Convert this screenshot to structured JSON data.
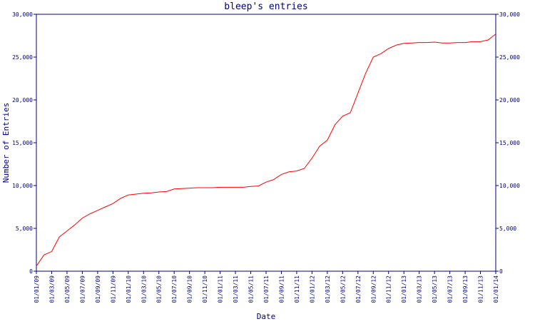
{
  "chart_data": {
    "type": "line",
    "title": "bleep's entries",
    "xlabel": "Date",
    "ylabel": "Number of Entries",
    "x": [
      "01/01/09",
      "01/02/09",
      "01/03/09",
      "01/04/09",
      "01/05/09",
      "01/06/09",
      "01/07/09",
      "01/08/09",
      "01/09/09",
      "01/10/09",
      "01/11/09",
      "01/12/09",
      "01/01/10",
      "01/02/10",
      "01/03/10",
      "01/04/10",
      "01/05/10",
      "01/06/10",
      "01/07/10",
      "01/08/10",
      "01/09/10",
      "01/10/10",
      "01/11/10",
      "01/12/10",
      "01/01/11",
      "01/02/11",
      "01/03/11",
      "01/04/11",
      "01/05/11",
      "01/06/11",
      "01/07/11",
      "01/08/11",
      "01/09/11",
      "01/10/11",
      "01/11/11",
      "01/12/11",
      "01/01/12",
      "01/02/12",
      "01/03/12",
      "01/04/12",
      "01/05/12",
      "01/06/12",
      "01/07/12",
      "01/08/12",
      "01/09/12",
      "01/10/12",
      "01/11/12",
      "01/12/12",
      "01/01/13",
      "01/02/13",
      "01/03/13",
      "01/04/13",
      "01/05/13",
      "01/06/13",
      "01/07/13",
      "01/08/13",
      "01/09/13",
      "01/10/13",
      "01/11/13",
      "01/12/13",
      "01/01/14"
    ],
    "series": [
      {
        "name": "entries",
        "color": "#ff0000",
        "values": [
          600,
          1900,
          2300,
          4000,
          4700,
          5400,
          6200,
          6700,
          7100,
          7500,
          7900,
          8500,
          8900,
          9000,
          9100,
          9150,
          9250,
          9300,
          9600,
          9650,
          9700,
          9750,
          9750,
          9750,
          9800,
          9800,
          9800,
          9800,
          9900,
          9950,
          10400,
          10700,
          11300,
          11600,
          11700,
          12000,
          13200,
          14600,
          15300,
          17100,
          18100,
          18500,
          20800,
          23100,
          25000,
          25400,
          26000,
          26400,
          26600,
          26650,
          26700,
          26700,
          26750,
          26650,
          26650,
          26700,
          26700,
          26800,
          26800,
          27000,
          27700
        ]
      }
    ],
    "xticks": [
      "01/01/09",
      "01/03/09",
      "01/05/09",
      "01/07/09",
      "01/09/09",
      "01/11/09",
      "01/01/10",
      "01/03/10",
      "01/05/10",
      "01/07/10",
      "01/09/10",
      "01/11/10",
      "01/01/11",
      "01/03/11",
      "01/05/11",
      "01/07/11",
      "01/09/11",
      "01/11/11",
      "01/01/12",
      "01/03/12",
      "01/05/12",
      "01/07/12",
      "01/09/12",
      "01/11/12",
      "01/01/13",
      "01/03/13",
      "01/05/13",
      "01/07/13",
      "01/09/13",
      "01/11/13",
      "01/01/14"
    ],
    "ylim": [
      0,
      30000
    ],
    "yticks": [
      0,
      {
        "value": 5000,
        "label": "5,000"
      },
      {
        "value": 10000,
        "label": "10,000"
      },
      {
        "value": 15000,
        "label": "15,000"
      },
      {
        "value": 20000,
        "label": "20,000"
      },
      {
        "value": 25000,
        "label": "25,000"
      },
      {
        "value": 30000,
        "label": "30,000"
      }
    ],
    "axis_color": "#000080"
  }
}
